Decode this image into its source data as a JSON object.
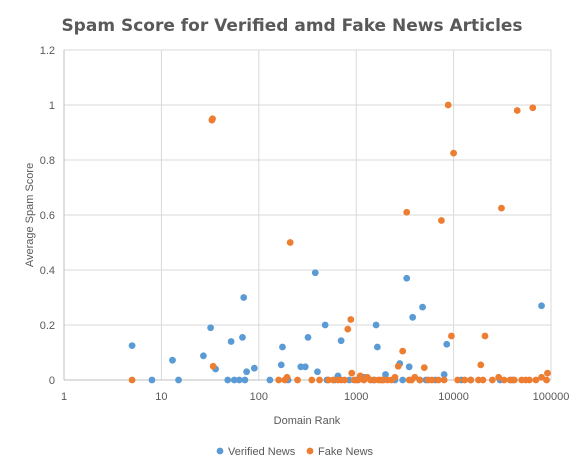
{
  "chart_data": {
    "type": "scatter",
    "title": "Spam Score for Verified amd Fake News Articles",
    "xlabel": "Domain Rank",
    "ylabel": "Average Spam Score",
    "x_scale": "log",
    "xlim": [
      1,
      100000
    ],
    "ylim": [
      0,
      1.2
    ],
    "x_ticks": [
      1,
      10,
      100,
      1000,
      10000,
      100000
    ],
    "x_tick_labels": [
      "1",
      "10",
      "100",
      "1000",
      "10000",
      "100000"
    ],
    "y_ticks": [
      0,
      0.2,
      0.4,
      0.6,
      0.8,
      1.0,
      1.2
    ],
    "y_tick_labels": [
      "0",
      "0.2",
      "0.4",
      "0.6",
      "0.8",
      "1",
      "1.2"
    ],
    "grid": true,
    "legend_position": "bottom",
    "series": [
      {
        "name": "Verified News",
        "color": "#5B9BD5",
        "points": [
          [
            5,
            0.125
          ],
          [
            8,
            0
          ],
          [
            13,
            0.072
          ],
          [
            15,
            0
          ],
          [
            27,
            0.088
          ],
          [
            32,
            0.19
          ],
          [
            36,
            0.04
          ],
          [
            48,
            0
          ],
          [
            52,
            0.14
          ],
          [
            56,
            0
          ],
          [
            63,
            0
          ],
          [
            68,
            0.155
          ],
          [
            70,
            0.3
          ],
          [
            72,
            0
          ],
          [
            75,
            0.03
          ],
          [
            90,
            0.043
          ],
          [
            130,
            0
          ],
          [
            170,
            0.055
          ],
          [
            175,
            0.12
          ],
          [
            200,
            0
          ],
          [
            270,
            0.048
          ],
          [
            300,
            0.048
          ],
          [
            320,
            0.155
          ],
          [
            380,
            0.39
          ],
          [
            400,
            0.03
          ],
          [
            480,
            0.2
          ],
          [
            500,
            0
          ],
          [
            600,
            0
          ],
          [
            650,
            0.015
          ],
          [
            700,
            0.143
          ],
          [
            850,
            0
          ],
          [
            1000,
            0
          ],
          [
            1200,
            0.01
          ],
          [
            1500,
            0
          ],
          [
            1600,
            0.2
          ],
          [
            1650,
            0.12
          ],
          [
            2000,
            0.02
          ],
          [
            2500,
            0
          ],
          [
            2800,
            0.06
          ],
          [
            3000,
            0
          ],
          [
            3300,
            0.37
          ],
          [
            3500,
            0.048
          ],
          [
            3800,
            0.228
          ],
          [
            4500,
            0
          ],
          [
            4800,
            0.265
          ],
          [
            5200,
            0
          ],
          [
            6500,
            0
          ],
          [
            8000,
            0.02
          ],
          [
            8500,
            0.13
          ],
          [
            12000,
            0
          ],
          [
            15000,
            0
          ],
          [
            30000,
            0
          ],
          [
            40000,
            0
          ],
          [
            80000,
            0.27
          ]
        ]
      },
      {
        "name": "Fake News",
        "color": "#ED7D31",
        "points": [
          [
            5,
            0
          ],
          [
            33,
            0.945
          ],
          [
            33.5,
            0.95
          ],
          [
            34,
            0.05
          ],
          [
            160,
            0
          ],
          [
            185,
            0
          ],
          [
            195,
            0.01
          ],
          [
            210,
            0.5
          ],
          [
            250,
            0
          ],
          [
            350,
            0
          ],
          [
            420,
            0
          ],
          [
            520,
            0
          ],
          [
            580,
            0
          ],
          [
            650,
            0
          ],
          [
            700,
            0
          ],
          [
            760,
            0
          ],
          [
            820,
            0.185
          ],
          [
            880,
            0.22
          ],
          [
            900,
            0.025
          ],
          [
            950,
            0
          ],
          [
            1050,
            0
          ],
          [
            1100,
            0.015
          ],
          [
            1200,
            0
          ],
          [
            1300,
            0.01
          ],
          [
            1400,
            0
          ],
          [
            1550,
            0
          ],
          [
            1700,
            0
          ],
          [
            1800,
            0
          ],
          [
            1900,
            0
          ],
          [
            2100,
            0
          ],
          [
            2300,
            0
          ],
          [
            2500,
            0.01
          ],
          [
            2700,
            0.05
          ],
          [
            3000,
            0.105
          ],
          [
            3300,
            0.61
          ],
          [
            3500,
            0
          ],
          [
            3700,
            0
          ],
          [
            4000,
            0.01
          ],
          [
            4500,
            0
          ],
          [
            5000,
            0.045
          ],
          [
            5500,
            0
          ],
          [
            6000,
            0
          ],
          [
            7000,
            0
          ],
          [
            7500,
            0.58
          ],
          [
            8000,
            0
          ],
          [
            8800,
            1.0
          ],
          [
            9500,
            0.16
          ],
          [
            10000,
            0.825
          ],
          [
            11000,
            0
          ],
          [
            13000,
            0
          ],
          [
            15000,
            0
          ],
          [
            18000,
            0
          ],
          [
            19000,
            0.055
          ],
          [
            20000,
            0
          ],
          [
            21000,
            0.16
          ],
          [
            25000,
            0
          ],
          [
            29000,
            0.01
          ],
          [
            31000,
            0.625
          ],
          [
            33000,
            0
          ],
          [
            38000,
            0
          ],
          [
            42000,
            0
          ],
          [
            45000,
            0.98
          ],
          [
            50000,
            0
          ],
          [
            55000,
            0
          ],
          [
            60000,
            0
          ],
          [
            65000,
            0.99
          ],
          [
            70000,
            0
          ],
          [
            80000,
            0.01
          ],
          [
            90000,
            0
          ],
          [
            92000,
            0.025
          ]
        ]
      }
    ]
  }
}
